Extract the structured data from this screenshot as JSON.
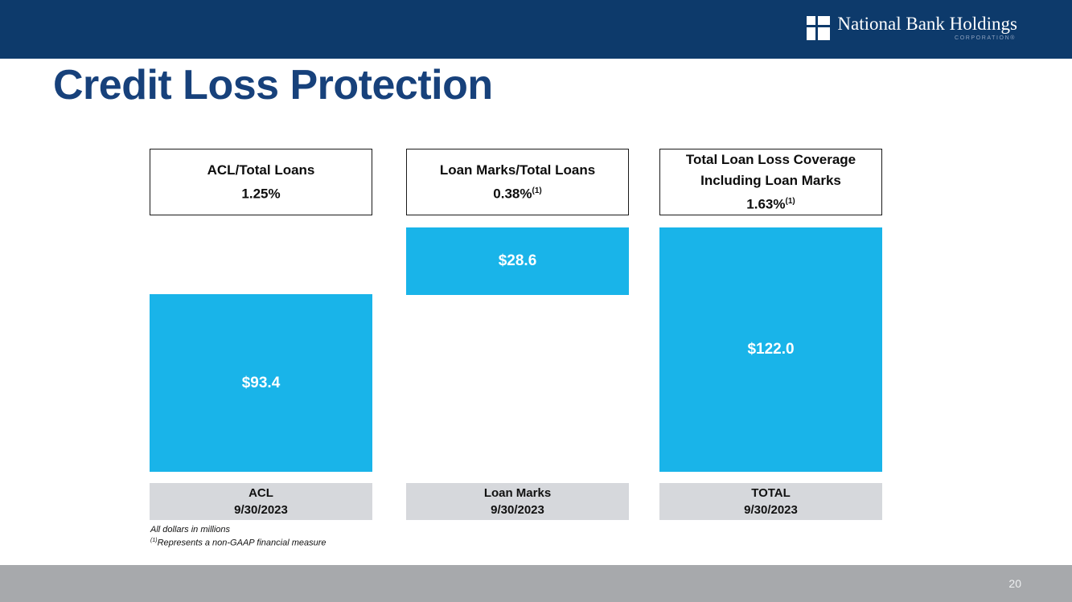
{
  "header": {
    "logo": {
      "name": "National Bank Holdings",
      "subtext": "CORPORATION®"
    }
  },
  "title": "Credit Loss Protection",
  "footnotes": {
    "line1": "All dollars in millions",
    "line2_sup": "(1)",
    "line2_text": "Represents a non-GAAP financial measure"
  },
  "footer": {
    "page_number": "20"
  },
  "colors": {
    "header_navy": "#0d3a6b",
    "title_blue": "#17417b",
    "bar_cyan": "#19b4e9",
    "label_gray": "#d6d8dc",
    "footer_gray": "#a7a9ac"
  },
  "chart_data": {
    "type": "bar",
    "title": "Credit Loss Protection",
    "units": "USD millions",
    "date": "9/30/2023",
    "ylim": [
      0,
      122
    ],
    "legend": "none",
    "grid": false,
    "layout_note": "Loan Marks bar floats from top of ACL bar up to TOTAL level; TOTAL bar spans full height",
    "columns": [
      {
        "header_line1": "ACL/Total Loans",
        "header_line2": "",
        "ratio": "1.25%",
        "ratio_sup": "",
        "value": 93.4,
        "value_label": "$93.4",
        "axis_label": "ACL",
        "axis_date": "9/30/2023"
      },
      {
        "header_line1": "Loan Marks/Total Loans",
        "header_line2": "",
        "ratio": "0.38%",
        "ratio_sup": "(1)",
        "value": 28.6,
        "value_label": "$28.6",
        "axis_label": "Loan Marks",
        "axis_date": "9/30/2023"
      },
      {
        "header_line1": "Total Loan Loss Coverage",
        "header_line2": "Including Loan Marks",
        "ratio": "1.63%",
        "ratio_sup": "(1)",
        "value": 122.0,
        "value_label": "$122.0",
        "axis_label": "TOTAL",
        "axis_date": "9/30/2023"
      }
    ]
  }
}
